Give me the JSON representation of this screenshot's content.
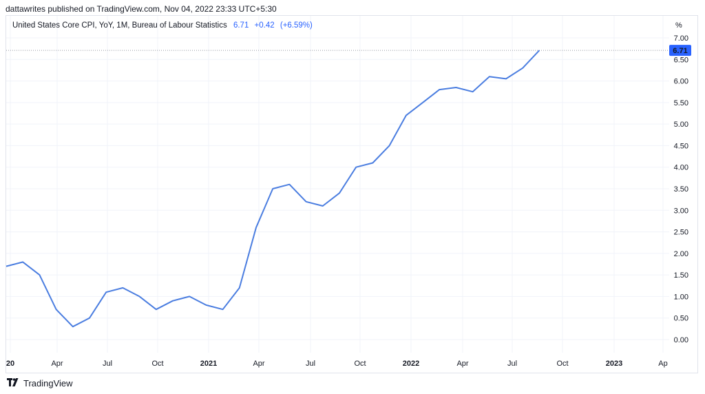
{
  "header": {
    "published": "dattawrites published on TradingView.com, Nov 04, 2022 23:33 UTC+5:30"
  },
  "legend": {
    "name": "United States Core CPI, YoY, 1M, Bureau of Labour Statistics",
    "last": "6.71",
    "change": "+0.42",
    "change_pct": "(+6.59%)"
  },
  "footer": {
    "brand": "TradingView"
  },
  "colors": {
    "line": "#4a7de0",
    "badge": "#2962ff",
    "grid": "#f0f3fa"
  },
  "chart_data": {
    "type": "line",
    "title": "",
    "ylabel": "%",
    "xlabel": "",
    "ylim": [
      0,
      7
    ],
    "yticks": [
      "7.00",
      "6.50",
      "6.00",
      "5.50",
      "5.00",
      "4.50",
      "4.00",
      "3.50",
      "3.00",
      "2.50",
      "2.00",
      "1.50",
      "1.00",
      "0.50",
      "0.00"
    ],
    "x_ticks": [
      {
        "label": "20",
        "bold": true
      },
      {
        "label": "Apr",
        "bold": false
      },
      {
        "label": "Jul",
        "bold": false
      },
      {
        "label": "Oct",
        "bold": false
      },
      {
        "label": "2021",
        "bold": true
      },
      {
        "label": "Apr",
        "bold": false
      },
      {
        "label": "Jul",
        "bold": false
      },
      {
        "label": "Oct",
        "bold": false
      },
      {
        "label": "2022",
        "bold": true
      },
      {
        "label": "Apr",
        "bold": false
      },
      {
        "label": "Jul",
        "bold": false
      },
      {
        "label": "Oct",
        "bold": false
      },
      {
        "label": "2023",
        "bold": true
      },
      {
        "label": "Ap",
        "bold": false
      }
    ],
    "last_value_badge": "6.71",
    "series": [
      {
        "name": "United States Core CPI, YoY",
        "x": [
          "2020-01",
          "2020-02",
          "2020-03",
          "2020-04",
          "2020-05",
          "2020-06",
          "2020-07",
          "2020-08",
          "2020-09",
          "2020-10",
          "2020-11",
          "2020-12",
          "2021-01",
          "2021-02",
          "2021-03",
          "2021-04",
          "2021-05",
          "2021-06",
          "2021-07",
          "2021-08",
          "2021-09",
          "2021-10",
          "2021-11",
          "2021-12",
          "2022-01",
          "2022-02",
          "2022-03",
          "2022-04",
          "2022-05",
          "2022-06",
          "2022-07",
          "2022-08",
          "2022-09"
        ],
        "values": [
          1.7,
          1.8,
          1.5,
          0.7,
          0.3,
          0.5,
          1.1,
          1.2,
          1.0,
          0.7,
          0.9,
          1.0,
          0.8,
          0.7,
          1.2,
          2.6,
          3.5,
          3.6,
          3.2,
          3.1,
          3.4,
          4.0,
          4.1,
          4.5,
          5.2,
          5.5,
          5.8,
          5.85,
          5.75,
          6.1,
          6.05,
          6.3,
          6.71
        ]
      }
    ]
  }
}
